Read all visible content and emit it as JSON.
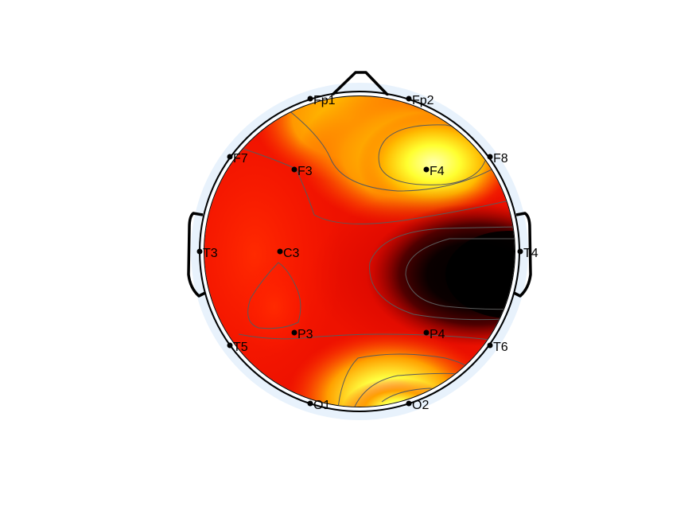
{
  "figure": {
    "type": "topographic-scalp-map",
    "colormap": "hot"
  },
  "electrodes": [
    {
      "label": "Fp1"
    },
    {
      "label": "Fp2"
    },
    {
      "label": "F7"
    },
    {
      "label": "F3"
    },
    {
      "label": "F4"
    },
    {
      "label": "F8"
    },
    {
      "label": "T3"
    },
    {
      "label": "C3"
    },
    {
      "label": "T4"
    },
    {
      "label": "P3"
    },
    {
      "label": "P4"
    },
    {
      "label": "T5"
    },
    {
      "label": "T6"
    },
    {
      "label": "O1"
    },
    {
      "label": "O2"
    }
  ],
  "colors": {
    "outer_ring": "#e8f2fc",
    "head_outline": "#000000",
    "contour": "#5a5a5a"
  }
}
